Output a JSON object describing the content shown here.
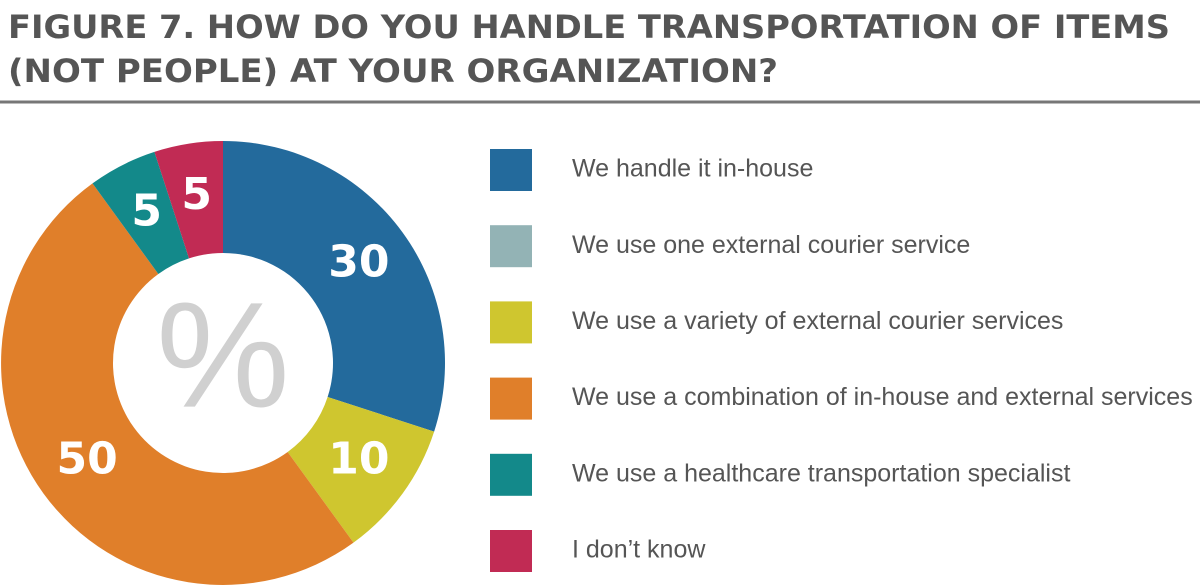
{
  "chart_data": {
    "type": "donut",
    "title": [
      "FIGURE 7. HOW DO YOU HANDLE TRANSPORTATION OF ITEMS",
      "(NOT PEOPLE) AT YOUR ORGANIZATION?"
    ],
    "center_label": "%",
    "categories": [
      "We handle it in-house",
      "We use one external courier service",
      "We use a variety of external courier services",
      "We use a combination of in-house and external services",
      "We use a healthcare transportation specialist",
      "I don’t know"
    ],
    "values": [
      30,
      0,
      10,
      50,
      5,
      5
    ],
    "colors": [
      "#236a9c",
      "#93b3b5",
      "#cfc62f",
      "#e07f2a",
      "#13898a",
      "#c12b54"
    ]
  }
}
